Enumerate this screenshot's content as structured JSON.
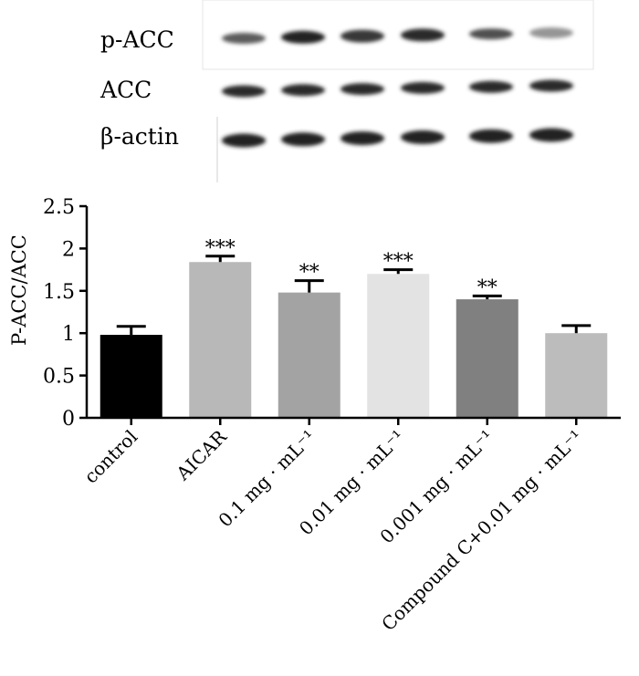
{
  "blot": {
    "rows": [
      {
        "label": "p-ACC",
        "intensities": [
          0.7,
          0.95,
          0.85,
          0.9,
          0.75,
          0.45
        ]
      },
      {
        "label": "ACC",
        "intensities": [
          0.9,
          0.9,
          0.9,
          0.9,
          0.9,
          0.9
        ]
      },
      {
        "label": "β-actin",
        "intensities": [
          0.95,
          0.95,
          0.95,
          0.95,
          0.95,
          0.95
        ]
      }
    ]
  },
  "chart_data": {
    "type": "bar",
    "ylabel": "P-ACC/ACC",
    "xlabel": "",
    "ylim": [
      0,
      2.5
    ],
    "yticks": [
      "0",
      "0.5",
      "1",
      "1.5",
      "2",
      "2.5"
    ],
    "categories": [
      "control",
      "AICAR",
      "0.1 mg · mL⁻¹",
      "0.01 mg · mL⁻¹",
      "0.001 mg · mL⁻¹",
      "Compound C+0.01 mg · mL⁻¹"
    ],
    "values": [
      0.98,
      1.84,
      1.48,
      1.7,
      1.4,
      1.0
    ],
    "errors": [
      0.1,
      0.07,
      0.14,
      0.05,
      0.04,
      0.09
    ],
    "significance": [
      "",
      "***",
      "**",
      "***",
      "**",
      ""
    ],
    "colors": [
      "#000000",
      "#b8b8b8",
      "#a3a3a3",
      "#e3e3e3",
      "#808080",
      "#bcbcbc"
    ],
    "grid": false
  }
}
